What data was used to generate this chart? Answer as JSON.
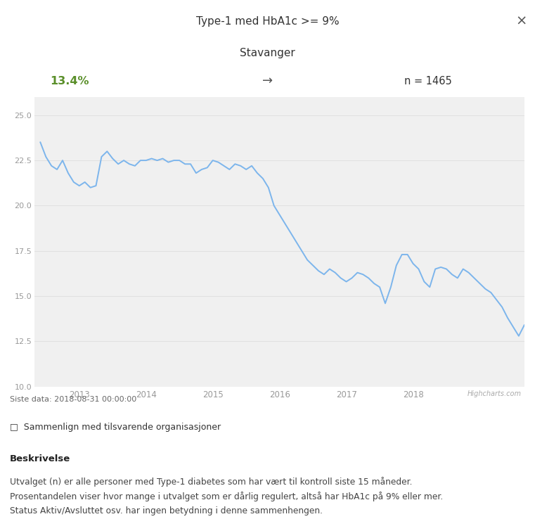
{
  "title": "Type-1 med HbA1c >= 9%",
  "subtitle": "Stavanger",
  "value_label": "13.4%",
  "arrow": "→",
  "n_label": "n = 1465",
  "last_data": "Siste data: 2018-08-31 00:00:00",
  "highcharts_label": "Highcharts.com",
  "compare_label": "□  Sammenlign med tilsvarende organisasjoner",
  "beskrivelse_title": "Beskrivelse",
  "beskrivelse_text": "Utvalget (n) er alle personer med Type-1 diabetes som har vært til kontroll siste 15 måneder.\nProsentandelen viser hvor mange i utvalget som er dårlig regulert, altså har HbA1c på 9% eller mer.\nStatus Aktiv/Avsluttet osv. har ingen betydning i denne sammenhengen.",
  "line_color": "#7cb5ec",
  "plot_bg": "#f0f0f0",
  "ylim": [
    10,
    26
  ],
  "yticks": [
    10,
    12.5,
    15,
    17.5,
    20,
    22.5,
    25
  ],
  "x_labels": [
    "2013",
    "2014",
    "2015",
    "2016",
    "2017",
    "2018"
  ],
  "year_positions": [
    7,
    19,
    31,
    43,
    55,
    67
  ],
  "series_y": [
    23.5,
    22.7,
    22.2,
    22.0,
    22.5,
    21.8,
    21.3,
    21.1,
    21.3,
    21.0,
    21.1,
    22.7,
    23.0,
    22.6,
    22.3,
    22.5,
    22.3,
    22.2,
    22.5,
    22.5,
    22.6,
    22.5,
    22.6,
    22.4,
    22.5,
    22.5,
    22.3,
    22.3,
    21.8,
    22.0,
    22.1,
    22.5,
    22.4,
    22.2,
    22.0,
    22.3,
    22.2,
    22.0,
    22.2,
    21.8,
    21.5,
    21.0,
    20.0,
    19.5,
    19.0,
    18.5,
    18.0,
    17.5,
    17.0,
    16.7,
    16.4,
    16.2,
    16.5,
    16.3,
    16.0,
    15.8,
    16.0,
    16.3,
    16.2,
    16.0,
    15.7,
    15.5,
    14.6,
    15.5,
    16.7,
    17.3,
    17.3,
    16.8,
    16.5,
    15.8,
    15.5,
    16.5,
    16.6,
    16.5,
    16.2,
    16.0,
    16.5,
    16.3,
    16.0,
    15.7,
    15.4,
    15.2,
    14.8,
    14.4,
    13.8,
    13.3,
    12.8,
    13.4
  ],
  "value_color": "#5a8f2a",
  "title_color": "#333333",
  "tick_color": "#999999",
  "grid_color": "#e0e0e0",
  "header_bg": "#f8f8f8",
  "white_bg": "#ffffff",
  "footer_bg": "#f4f4f4",
  "divider_color": "#d8d8d8"
}
